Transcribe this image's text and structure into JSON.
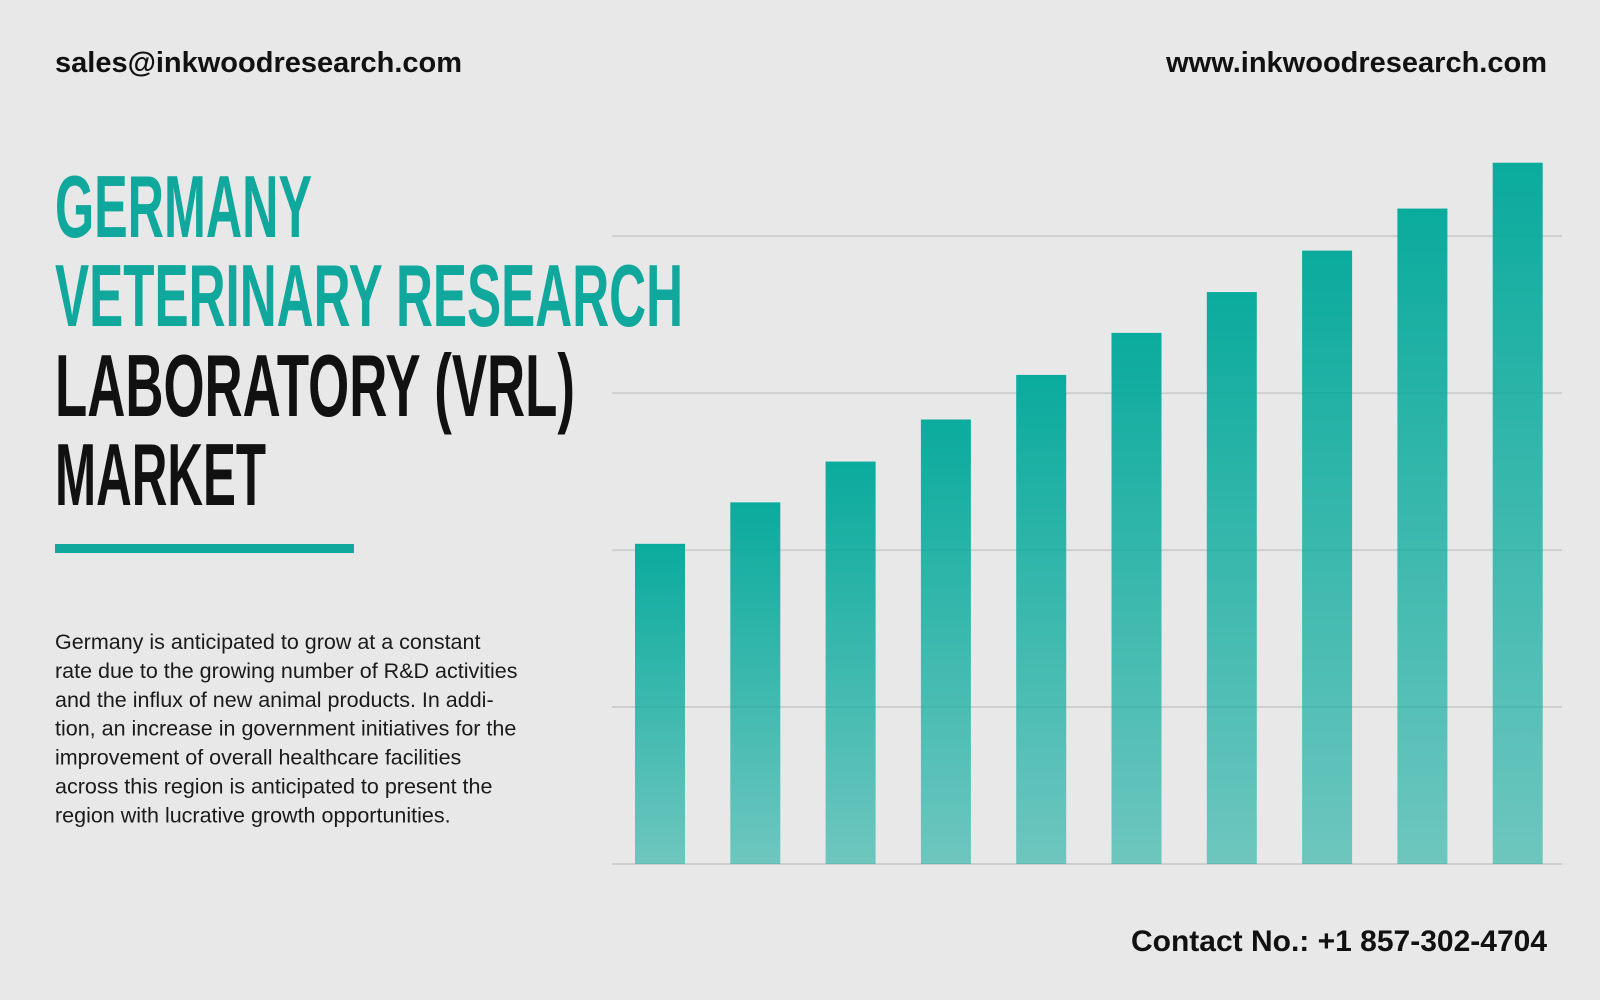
{
  "header": {
    "email": "sales@inkwoodresearch.com",
    "website": "www.inkwoodresearch.com"
  },
  "title_lines": [
    {
      "text": "GERMANY",
      "color": "#10a89c"
    },
    {
      "text": "VETERINARY RESEARCH",
      "color": "#10a89c"
    },
    {
      "text": "LABORATORY (VRL)",
      "color": "#111111"
    },
    {
      "text": "MARKET",
      "color": "#111111"
    }
  ],
  "description_lines": [
    "Germany is anticipated to grow at a constant",
    "rate due to the growing number of R&D activities",
    "and the influx of new animal products. In addi-",
    "tion, an increase in government initiatives for the",
    "improvement of overall healthcare facilities",
    "across this region is anticipated to present the",
    "region with lucrative growth opportunities."
  ],
  "contact": "Contact No.: +1 857-302-4704",
  "chart_data": {
    "type": "bar",
    "categories": [
      null,
      null,
      null,
      null,
      null,
      null,
      null,
      null,
      null,
      null
    ],
    "values": [
      51,
      57.6,
      64.1,
      70.8,
      77.9,
      84.6,
      91.1,
      97.7,
      104.4,
      111.7
    ],
    "color": "#0aab9d",
    "ylim": [
      0,
      115
    ],
    "yticks": [
      0,
      25,
      50,
      75,
      100
    ],
    "grid": true
  }
}
